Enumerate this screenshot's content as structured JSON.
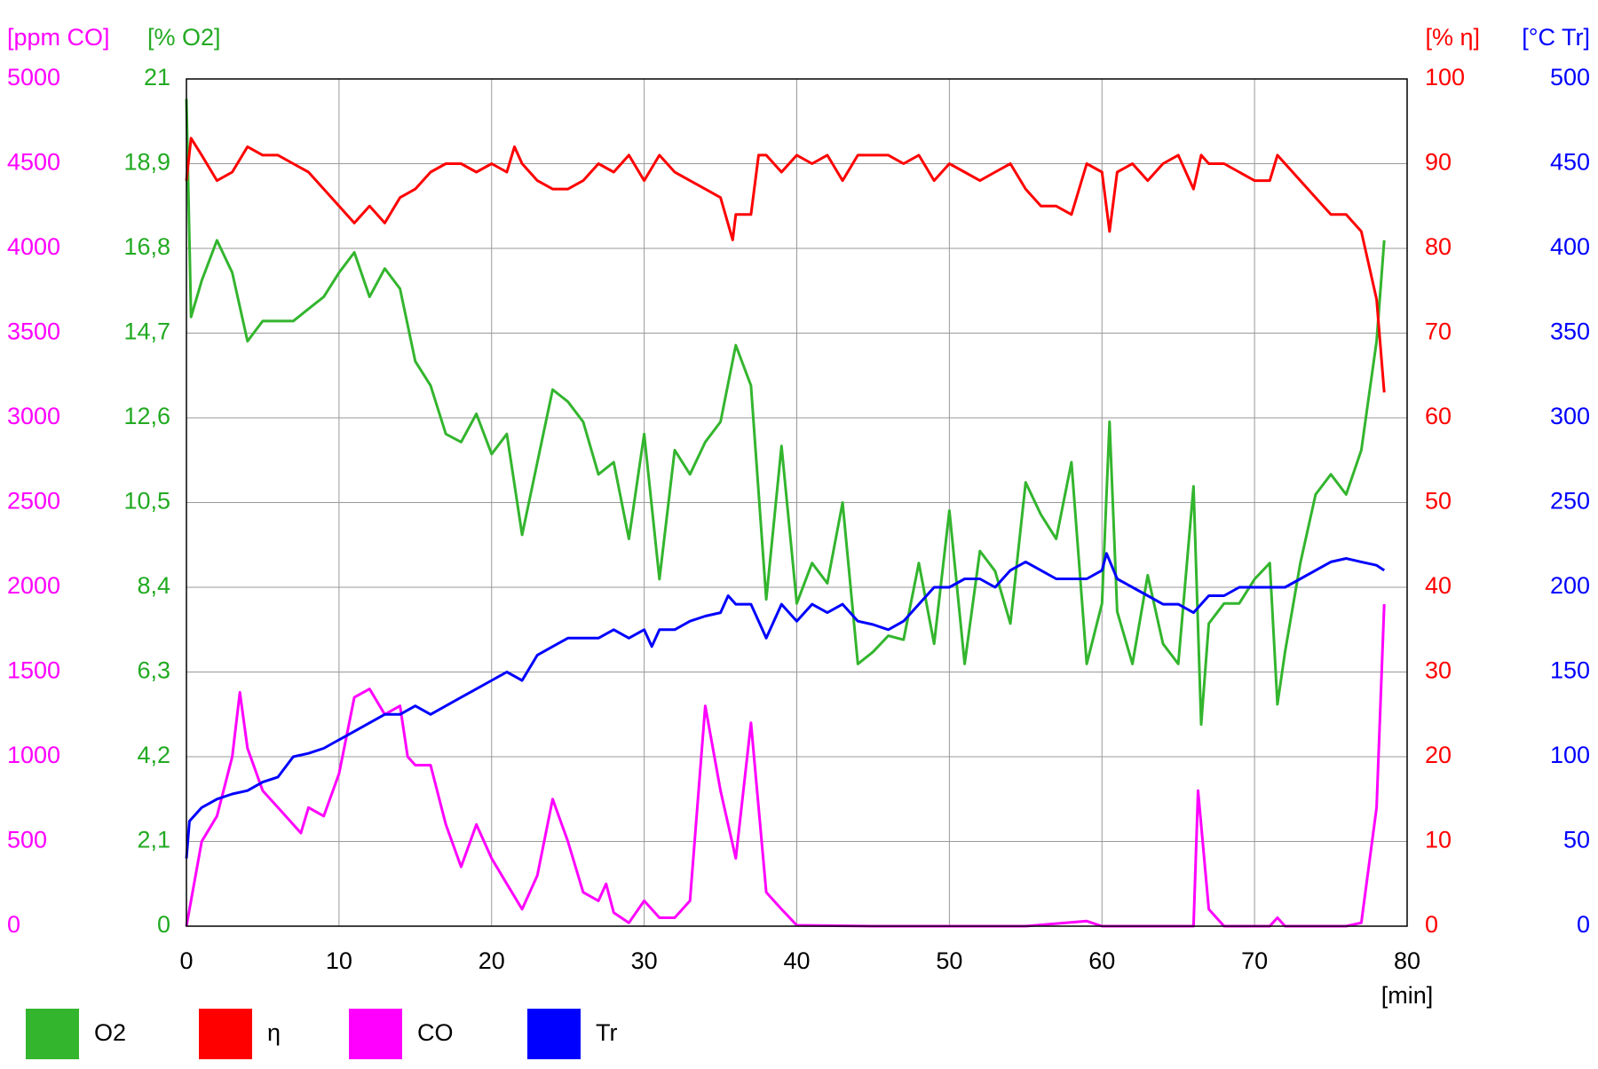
{
  "chart_data": {
    "type": "line",
    "xlabel": "[min]",
    "xlim": [
      0,
      80
    ],
    "xticks": [
      0,
      10,
      20,
      30,
      40,
      50,
      60,
      70,
      80
    ],
    "grid": true,
    "series": [
      {
        "name": "O2",
        "color": "#33b52e",
        "label": "[% O2]",
        "ylim": [
          0,
          21
        ],
        "yticks": [
          0,
          {
            "value": 2.1,
            "label": "2,1"
          },
          {
            "value": 4.2,
            "label": "4,2"
          },
          {
            "value": 6.3,
            "label": "6,3"
          },
          {
            "value": 8.4,
            "label": "8,4"
          },
          {
            "value": 10.5,
            "label": "10,5"
          },
          {
            "value": 12.6,
            "label": "12,6"
          },
          {
            "value": 14.7,
            "label": "14,7"
          },
          {
            "value": 16.8,
            "label": "16,8"
          },
          {
            "value": 18.9,
            "label": "18,9"
          },
          21
        ],
        "x": [
          0,
          0.3,
          1,
          2,
          3,
          4,
          5,
          6,
          7,
          8,
          9,
          10,
          11,
          12,
          13,
          14,
          15,
          16,
          17,
          18,
          19,
          20,
          21,
          22,
          23,
          24,
          25,
          26,
          27,
          28,
          29,
          30,
          31,
          32,
          33,
          34,
          35,
          36,
          37,
          38,
          39,
          40,
          41,
          42,
          43,
          44,
          45,
          46,
          47,
          48,
          49,
          50,
          51,
          52,
          53,
          54,
          55,
          56,
          57,
          58,
          59,
          60,
          60.5,
          61,
          62,
          63,
          64,
          65,
          66,
          66.5,
          67,
          68,
          69,
          70,
          71,
          71.5,
          72,
          73,
          74,
          75,
          76,
          77,
          78,
          78.5
        ],
        "values": [
          20.5,
          15.1,
          16.0,
          17.0,
          16.2,
          14.5,
          15.0,
          15.0,
          15.0,
          15.3,
          15.6,
          16.2,
          16.7,
          15.6,
          16.3,
          15.8,
          14.0,
          13.4,
          12.2,
          12.0,
          12.7,
          11.7,
          12.2,
          9.7,
          11.5,
          13.3,
          13.0,
          12.5,
          11.2,
          11.5,
          9.6,
          12.2,
          8.6,
          11.8,
          11.2,
          12.0,
          12.5,
          14.4,
          13.4,
          8.1,
          11.9,
          8.0,
          9.0,
          8.5,
          10.5,
          6.5,
          6.8,
          7.2,
          7.1,
          9.0,
          7.0,
          10.3,
          6.5,
          9.3,
          8.8,
          7.5,
          11.0,
          10.2,
          9.6,
          11.5,
          6.5,
          8.0,
          12.5,
          7.8,
          6.5,
          8.7,
          7.0,
          6.5,
          10.9,
          5.0,
          7.5,
          8.0,
          8.0,
          8.6,
          9.0,
          5.5,
          6.8,
          9.0,
          10.7,
          11.2,
          10.7,
          11.8,
          14.5,
          17.0
        ]
      },
      {
        "name": "η",
        "color": "#ff0000",
        "label": "[% η]",
        "ylim": [
          0,
          100
        ],
        "yticks": [
          0,
          10,
          20,
          30,
          40,
          50,
          60,
          70,
          80,
          90,
          100
        ],
        "x": [
          0,
          0.3,
          1,
          2,
          3,
          4,
          5,
          6,
          7,
          8,
          9,
          10,
          11,
          12,
          13,
          14,
          15,
          16,
          17,
          18,
          19,
          20,
          21,
          21.5,
          22,
          23,
          24,
          25,
          26,
          27,
          28,
          29,
          30,
          31,
          32,
          33,
          34,
          35,
          35.8,
          36,
          37,
          37.5,
          38,
          39,
          40,
          41,
          42,
          43,
          44,
          45,
          46,
          47,
          48,
          49,
          50,
          51,
          52,
          53,
          54,
          55,
          56,
          57,
          58,
          59,
          60,
          60.5,
          61,
          62,
          63,
          64,
          65,
          66,
          66.5,
          67,
          68,
          69,
          70,
          71,
          71.5,
          72,
          73,
          74,
          75,
          76,
          77,
          78,
          78.5
        ],
        "values": [
          88,
          93,
          91,
          88,
          89,
          92,
          91,
          91,
          90,
          89,
          87,
          85,
          83,
          85,
          83,
          86,
          87,
          89,
          90,
          90,
          89,
          90,
          89,
          92,
          90,
          88,
          87,
          87,
          88,
          90,
          89,
          91,
          88,
          91,
          89,
          88,
          87,
          86,
          81,
          84,
          84,
          91,
          91,
          89,
          91,
          90,
          91,
          88,
          91,
          91,
          91,
          90,
          91,
          88,
          90,
          89,
          88,
          89,
          90,
          87,
          85,
          85,
          84,
          90,
          89,
          82,
          89,
          90,
          88,
          90,
          91,
          87,
          91,
          90,
          90,
          89,
          88,
          88,
          91,
          90,
          88,
          86,
          84,
          84,
          82,
          74,
          63
        ]
      },
      {
        "name": "CO",
        "color": "#ff00ff",
        "label": "[ppm CO]",
        "ylim": [
          0,
          5000
        ],
        "yticks": [
          0,
          500,
          1000,
          1500,
          2000,
          2500,
          3000,
          3500,
          4000,
          4500,
          5000
        ],
        "x": [
          0,
          1,
          2,
          3,
          3.5,
          4,
          5,
          6,
          7,
          7.5,
          8,
          9,
          10,
          11,
          12,
          13,
          14,
          14.5,
          15,
          16,
          17,
          18,
          19,
          20,
          21,
          22,
          23,
          24,
          25,
          26,
          27,
          27.5,
          28,
          29,
          30,
          31,
          32,
          33,
          34,
          35,
          36,
          37,
          38,
          39,
          40,
          45,
          50,
          55,
          59,
          60,
          65,
          66,
          66.3,
          67,
          68,
          71,
          71.5,
          72,
          76,
          77,
          78,
          78.5
        ],
        "values": [
          0,
          500,
          650,
          1000,
          1380,
          1050,
          800,
          700,
          600,
          550,
          700,
          650,
          900,
          1350,
          1400,
          1250,
          1300,
          1000,
          950,
          950,
          600,
          350,
          600,
          400,
          250,
          100,
          300,
          750,
          500,
          200,
          150,
          250,
          80,
          20,
          150,
          50,
          50,
          150,
          1300,
          800,
          400,
          1200,
          200,
          100,
          5,
          0,
          0,
          0,
          30,
          0,
          0,
          0,
          800,
          100,
          0,
          0,
          50,
          0,
          0,
          20,
          700,
          1900
        ]
      },
      {
        "name": "Tr",
        "color": "#0000ff",
        "label": "[°C Tr]",
        "ylim": [
          0,
          500
        ],
        "yticks": [
          0,
          50,
          100,
          150,
          200,
          250,
          300,
          350,
          400,
          450,
          500
        ],
        "x": [
          0,
          0.2,
          1,
          2,
          3,
          4,
          5,
          6,
          7,
          8,
          9,
          10,
          11,
          12,
          13,
          14,
          15,
          16,
          17,
          18,
          19,
          20,
          21,
          22,
          23,
          24,
          25,
          26,
          27,
          28,
          29,
          30,
          30.5,
          31,
          32,
          33,
          34,
          35,
          35.5,
          36,
          37,
          38,
          39,
          40,
          41,
          42,
          43,
          44,
          45,
          46,
          47,
          48,
          49,
          50,
          51,
          52,
          53,
          54,
          55,
          56,
          57,
          58,
          59,
          60,
          60.3,
          61,
          62,
          63,
          64,
          65,
          66,
          67,
          68,
          69,
          70,
          71,
          72,
          73,
          74,
          75,
          76,
          77,
          78,
          78.5
        ],
        "values": [
          40,
          62,
          70,
          75,
          78,
          80,
          85,
          88,
          100,
          102,
          105,
          110,
          115,
          120,
          125,
          125,
          130,
          125,
          130,
          135,
          140,
          145,
          150,
          145,
          160,
          165,
          170,
          170,
          170,
          175,
          170,
          175,
          165,
          175,
          175,
          180,
          183,
          185,
          195,
          190,
          190,
          170,
          190,
          180,
          190,
          185,
          190,
          180,
          178,
          175,
          180,
          190,
          200,
          200,
          205,
          205,
          200,
          210,
          215,
          210,
          205,
          205,
          205,
          210,
          220,
          205,
          200,
          195,
          190,
          190,
          185,
          195,
          195,
          200,
          200,
          200,
          200,
          205,
          210,
          215,
          217,
          215,
          213,
          210
        ]
      }
    ]
  }
}
